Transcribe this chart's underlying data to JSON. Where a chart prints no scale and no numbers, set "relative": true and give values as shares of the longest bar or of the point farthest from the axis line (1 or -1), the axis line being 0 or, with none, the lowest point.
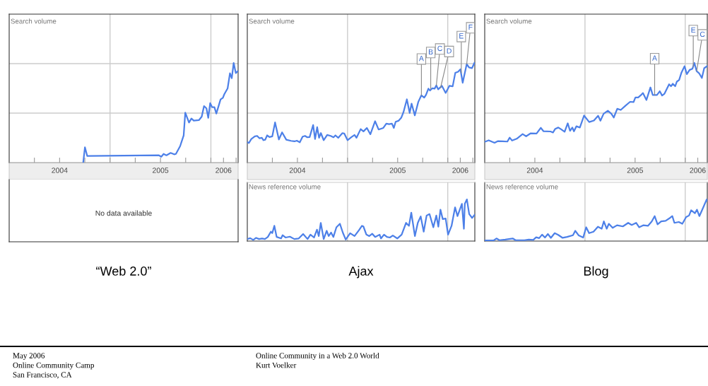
{
  "chart_data": [
    {
      "type": "line",
      "title": "“Web 2.0”",
      "ylabel": "Search volume",
      "relative": true,
      "color": "#4d80e8",
      "grid": "y",
      "xlim": [
        2004,
        2006.27
      ],
      "xticks": [
        {
          "value": 2004.25,
          "label": null
        },
        {
          "value": 2004.5,
          "label": "2004"
        },
        {
          "value": 2004.75,
          "label": null
        },
        {
          "value": 2005,
          "label": null
        },
        {
          "value": 2005.25,
          "label": null
        },
        {
          "value": 2005.5,
          "label": "2005"
        },
        {
          "value": 2005.75,
          "label": null
        },
        {
          "value": 2006,
          "label": null
        },
        {
          "value": 2006.125,
          "label": "2006"
        },
        {
          "value": 2006.25,
          "label": null
        }
      ],
      "ref_lines": [
        {
          "axis": "x",
          "value": 2005,
          "color": "#cccccc"
        },
        {
          "axis": "x",
          "value": 2006,
          "color": "#cccccc"
        }
      ],
      "x": [
        2004.734,
        2004.751,
        2004.774,
        2005.485,
        2005.508,
        2005.531,
        2005.559,
        2005.601,
        2005.636,
        2005.653,
        2005.695,
        2005.73,
        2005.746,
        2005.783,
        2005.807,
        2005.83,
        2005.881,
        2005.909,
        2005.932,
        2005.956,
        2005.974,
        2005.993,
        2006.012,
        2006.035,
        2006.054,
        2006.096,
        2006.119,
        2006.133,
        2006.166,
        2006.189,
        2006.207,
        2006.226,
        2006.247,
        2006.266
      ],
      "values": [
        0,
        0.154,
        0.066,
        0.073,
        0.059,
        0.087,
        0.073,
        0.097,
        0.083,
        0.087,
        0.165,
        0.272,
        0.501,
        0.402,
        0.442,
        0.421,
        0.426,
        0.461,
        0.567,
        0.544,
        0.449,
        0.596,
        0.556,
        0.556,
        0.492,
        0.634,
        0.65,
        0.686,
        0.745,
        0.896,
        0.846,
        1.0,
        0.898,
        0.917
      ]
    },
    {
      "type": "other",
      "annotations": [
        "No data available"
      ]
    },
    {
      "type": "line",
      "title": "Ajax",
      "ylabel": "Search volume",
      "relative": true,
      "color": "#4d80e8",
      "grid": "y",
      "xlim": [
        2004,
        2006.27
      ],
      "xticks": [
        {
          "value": 2004.25,
          "label": null
        },
        {
          "value": 2004.5,
          "label": "2004"
        },
        {
          "value": 2004.75,
          "label": null
        },
        {
          "value": 2005,
          "label": null
        },
        {
          "value": 2005.25,
          "label": null
        },
        {
          "value": 2005.5,
          "label": "2005"
        },
        {
          "value": 2005.75,
          "label": null
        },
        {
          "value": 2006,
          "label": null
        },
        {
          "value": 2006.125,
          "label": "2006"
        },
        {
          "value": 2006.25,
          "label": null
        }
      ],
      "ref_lines": [
        {
          "axis": "x",
          "value": 2005,
          "color": "#cccccc"
        },
        {
          "axis": "x",
          "value": 2006,
          "color": "#cccccc"
        }
      ],
      "annotations": [
        {
          "text": "A",
          "x": 2005.737,
          "y": 0.675
        },
        {
          "text": "B",
          "x": 2005.83,
          "y": 0.74
        },
        {
          "text": "C",
          "x": 2005.886,
          "y": 0.775
        },
        {
          "text": "D",
          "x": 2005.928,
          "y": 0.75
        },
        {
          "text": "E",
          "x": 2006.135,
          "y": 0.9
        },
        {
          "text": "F",
          "x": 2006.189,
          "y": 0.988
        }
      ],
      "x": [
        2004.0,
        2004.016,
        2004.04,
        2004.075,
        2004.098,
        2004.121,
        2004.145,
        2004.161,
        2004.179,
        2004.198,
        2004.221,
        2004.249,
        2004.277,
        2004.315,
        2004.347,
        2004.389,
        2004.436,
        2004.471,
        2004.494,
        2004.524,
        2004.552,
        2004.576,
        2004.599,
        2004.622,
        2004.657,
        2004.676,
        2004.697,
        2004.716,
        2004.734,
        2004.762,
        2004.797,
        2004.832,
        2004.86,
        2004.879,
        2004.907,
        2004.949,
        2004.967,
        2005.0,
        2005.037,
        2005.07,
        2005.089,
        2005.131,
        2005.159,
        2005.193,
        2005.228,
        2005.275,
        2005.31,
        2005.357,
        2005.387,
        2005.415,
        2005.443,
        2005.462,
        2005.48,
        2005.508,
        2005.536,
        2005.559,
        2005.592,
        2005.62,
        2005.639,
        2005.671,
        2005.706,
        2005.737,
        2005.765,
        2005.783,
        2005.807,
        2005.823,
        2005.846,
        2005.869,
        2005.886,
        2005.904,
        2005.942,
        2005.979,
        2006.016,
        2006.049,
        2006.075,
        2006.103,
        2006.126,
        2006.149,
        2006.189,
        2006.212,
        2006.242,
        2006.266
      ],
      "values": [
        0.206,
        0.197,
        0.237,
        0.263,
        0.268,
        0.244,
        0.249,
        0.225,
        0.23,
        0.273,
        0.256,
        0.263,
        0.403,
        0.232,
        0.303,
        0.23,
        0.218,
        0.213,
        0.22,
        0.204,
        0.261,
        0.268,
        0.254,
        0.256,
        0.377,
        0.237,
        0.355,
        0.249,
        0.296,
        0.225,
        0.277,
        0.268,
        0.254,
        0.273,
        0.249,
        0.296,
        0.292,
        0.225,
        0.254,
        0.277,
        0.249,
        0.336,
        0.313,
        0.348,
        0.284,
        0.415,
        0.332,
        0.348,
        0.391,
        0.386,
        0.391,
        0.348,
        0.41,
        0.419,
        0.45,
        0.509,
        0.635,
        0.498,
        0.592,
        0.474,
        0.609,
        0.675,
        0.652,
        0.68,
        0.742,
        0.723,
        0.746,
        0.742,
        0.775,
        0.735,
        0.77,
        0.699,
        0.77,
        0.765,
        0.9,
        0.912,
        0.936,
        0.801,
        0.988,
        0.955,
        0.948,
        1.0
      ]
    },
    {
      "type": "line",
      "ylabel": "News reference volume",
      "relative": true,
      "color": "#4d80e8",
      "xlim": [
        2004,
        2006.27
      ],
      "ref_lines": [
        {
          "axis": "x",
          "value": 2005,
          "color": "#cccccc"
        },
        {
          "axis": "x",
          "value": 2006,
          "color": "#cccccc"
        }
      ],
      "x": [
        2004.0,
        2004.029,
        2004.059,
        2004.088,
        2004.117,
        2004.147,
        2004.176,
        2004.205,
        2004.235,
        2004.249,
        2004.27,
        2004.293,
        2004.337,
        2004.352,
        2004.381,
        2004.425,
        2004.469,
        2004.513,
        2004.557,
        2004.601,
        2004.63,
        2004.666,
        2004.695,
        2004.713,
        2004.733,
        2004.762,
        2004.792,
        2004.812,
        2004.836,
        2004.859,
        2004.889,
        2004.924,
        2004.953,
        2004.982,
        2005.026,
        2005.07,
        2005.114,
        2005.144,
        2005.158,
        2005.188,
        2005.217,
        2005.246,
        2005.276,
        2005.32,
        2005.334,
        2005.364,
        2005.393,
        2005.422,
        2005.452,
        2005.496,
        2005.54,
        2005.584,
        2005.613,
        2005.636,
        2005.672,
        2005.701,
        2005.73,
        2005.76,
        2005.789,
        2005.818,
        2005.856,
        2005.886,
        2005.906,
        2005.927,
        2005.95,
        2005.979,
        2006.003,
        2006.038,
        2006.073,
        2006.097,
        2006.141,
        2006.161,
        2006.17,
        2006.191,
        2006.214,
        2006.243,
        2006.267
      ],
      "values": [
        0.049,
        0.07,
        0.028,
        0.077,
        0.049,
        0.063,
        0.049,
        0.099,
        0.225,
        0.19,
        0.366,
        0.099,
        0.063,
        0.141,
        0.085,
        0.106,
        0.049,
        0.063,
        0.169,
        0.049,
        0.155,
        0.085,
        0.275,
        0.12,
        0.437,
        0.049,
        0.246,
        0.12,
        0.204,
        0.099,
        0.331,
        0.415,
        0.204,
        0.035,
        0.19,
        0.12,
        0.261,
        0.366,
        0.352,
        0.155,
        0.12,
        0.176,
        0.099,
        0.155,
        0.063,
        0.155,
        0.099,
        0.085,
        0.134,
        0.063,
        0.155,
        0.437,
        0.366,
        0.683,
        0.12,
        0.437,
        0.592,
        0.225,
        0.613,
        0.648,
        0.331,
        0.613,
        0.345,
        0.754,
        0.528,
        0.542,
        0.155,
        0.366,
        0.81,
        0.599,
        0.894,
        0.296,
        0.894,
        1.0,
        0.648,
        0.556,
        0.627
      ]
    },
    {
      "type": "line",
      "title": "Blog",
      "ylabel": "Search volume",
      "relative": true,
      "color": "#4d80e8",
      "grid": "y",
      "xlim": [
        2004,
        2006.22
      ],
      "xticks": [
        {
          "value": 2004.25,
          "label": null
        },
        {
          "value": 2004.5,
          "label": "2004"
        },
        {
          "value": 2004.75,
          "label": null
        },
        {
          "value": 2005,
          "label": null
        },
        {
          "value": 2005.25,
          "label": null
        },
        {
          "value": 2005.5,
          "label": "2005"
        },
        {
          "value": 2005.75,
          "label": null
        },
        {
          "value": 2006,
          "label": null
        },
        {
          "value": 2006.125,
          "label": "2006"
        }
      ],
      "ref_lines": [
        {
          "axis": "x",
          "value": 2005,
          "color": "#cccccc"
        },
        {
          "axis": "x",
          "value": 2006,
          "color": "#cccccc"
        }
      ],
      "annotations": [
        {
          "text": "A",
          "x": 2005.695,
          "y": 0.678
        },
        {
          "text": "E",
          "x": 2006.08,
          "y": 0.96
        },
        {
          "text": "C",
          "x": 2006.114,
          "y": 0.917
        }
      ],
      "x": [
        2004.0,
        2004.04,
        2004.098,
        2004.133,
        2004.179,
        2004.226,
        2004.249,
        2004.273,
        2004.319,
        2004.378,
        2004.413,
        2004.459,
        2004.517,
        2004.559,
        2004.587,
        2004.657,
        2004.681,
        2004.704,
        2004.734,
        2004.762,
        2004.797,
        2004.828,
        2004.851,
        2004.874,
        2004.89,
        2004.914,
        2004.949,
        2004.991,
        2005.042,
        2005.089,
        2005.131,
        2005.154,
        2005.186,
        2005.228,
        2005.263,
        2005.287,
        2005.322,
        2005.357,
        2005.403,
        2005.45,
        2005.485,
        2005.503,
        2005.531,
        2005.559,
        2005.578,
        2005.613,
        2005.653,
        2005.676,
        2005.718,
        2005.746,
        2005.769,
        2005.793,
        2005.839,
        2005.858,
        2005.876,
        2005.9,
        2005.916,
        2005.939,
        2005.963,
        2005.993,
        2006.016,
        2006.044,
        2006.072,
        2006.091,
        2006.114,
        2006.138,
        2006.166,
        2006.189,
        2006.217
      ],
      "values": [
        0.208,
        0.224,
        0.199,
        0.216,
        0.214,
        0.211,
        0.251,
        0.221,
        0.239,
        0.286,
        0.264,
        0.294,
        0.291,
        0.349,
        0.314,
        0.312,
        0.302,
        0.339,
        0.352,
        0.334,
        0.309,
        0.394,
        0.319,
        0.352,
        0.314,
        0.364,
        0.352,
        0.472,
        0.407,
        0.422,
        0.47,
        0.42,
        0.49,
        0.52,
        0.49,
        0.452,
        0.54,
        0.528,
        0.57,
        0.61,
        0.608,
        0.653,
        0.653,
        0.678,
        0.698,
        0.628,
        0.754,
        0.678,
        0.678,
        0.716,
        0.673,
        0.691,
        0.786,
        0.766,
        0.791,
        0.766,
        0.812,
        0.829,
        0.905,
        0.967,
        0.887,
        0.93,
        0.942,
        1.0,
        0.917,
        0.897,
        0.849,
        0.947,
        0.967
      ]
    },
    {
      "type": "line",
      "ylabel": "News reference volume",
      "relative": true,
      "color": "#4d80e8",
      "xlim": [
        2004,
        2006.22
      ],
      "ref_lines": [
        {
          "axis": "x",
          "value": 2005,
          "color": "#cccccc"
        },
        {
          "axis": "x",
          "value": 2006,
          "color": "#cccccc"
        }
      ],
      "x": [
        2004.0,
        2004.088,
        2004.117,
        2004.147,
        2004.205,
        2004.279,
        2004.308,
        2004.396,
        2004.44,
        2004.484,
        2004.513,
        2004.543,
        2004.572,
        2004.601,
        2004.63,
        2004.66,
        2004.698,
        2004.733,
        2004.777,
        2004.821,
        2004.88,
        2004.903,
        2004.938,
        2004.982,
        2005.012,
        2005.041,
        2005.085,
        2005.129,
        2005.167,
        2005.188,
        2005.217,
        2005.238,
        2005.276,
        2005.32,
        2005.378,
        2005.431,
        2005.466,
        2005.51,
        2005.54,
        2005.584,
        2005.628,
        2005.666,
        2005.695,
        2005.724,
        2005.76,
        2005.804,
        2005.848,
        2005.871,
        2005.892,
        2005.936,
        2005.971,
        2006.009,
        2006.038,
        2006.059,
        2006.097,
        2006.117,
        2006.141,
        2006.17,
        2006.214,
        2006.22
      ],
      "values": [
        0.014,
        0.014,
        0.063,
        0.021,
        0.035,
        0.063,
        0.021,
        0.021,
        0.035,
        0.028,
        0.092,
        0.07,
        0.155,
        0.085,
        0.169,
        0.077,
        0.19,
        0.148,
        0.077,
        0.099,
        0.141,
        0.246,
        0.134,
        0.085,
        0.331,
        0.19,
        0.225,
        0.345,
        0.296,
        0.472,
        0.296,
        0.415,
        0.317,
        0.38,
        0.352,
        0.437,
        0.387,
        0.437,
        0.331,
        0.38,
        0.366,
        0.472,
        0.599,
        0.401,
        0.472,
        0.486,
        0.556,
        0.599,
        0.437,
        0.458,
        0.415,
        0.577,
        0.613,
        0.739,
        0.669,
        0.754,
        0.599,
        0.754,
        1.0,
        0.965
      ]
    },
    {
      "type": "other",
      "annotations": [
        "May 2006",
        "Online Community Camp",
        "San Francisco, CA",
        "Online Community in a Web 2.0 World",
        "Kurt Voelker"
      ]
    }
  ]
}
